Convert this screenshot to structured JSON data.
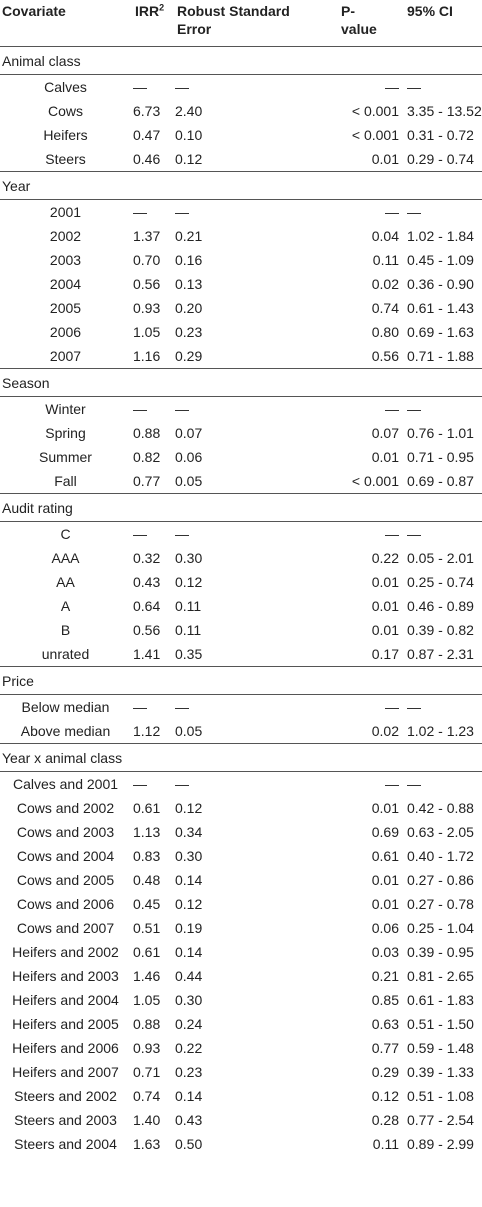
{
  "table": {
    "header": [
      "Covariate",
      "IRR",
      "Robust Standard Error",
      "P-value",
      "95% CI"
    ],
    "header_superscript": "2",
    "sections": [
      {
        "title": "Animal class",
        "rows": [
          [
            "Calves",
            "—",
            "—",
            "—",
            "—"
          ],
          [
            "Cows",
            "6.73",
            "2.40",
            "< 0.001",
            "3.35 - 13.52"
          ],
          [
            "Heifers",
            "0.47",
            "0.10",
            "< 0.001",
            "0.31 - 0.72"
          ],
          [
            "Steers",
            "0.46",
            "0.12",
            "0.01",
            "0.29 - 0.74"
          ]
        ]
      },
      {
        "title": "Year",
        "rows": [
          [
            "2001",
            "—",
            "—",
            "—",
            "—"
          ],
          [
            "2002",
            "1.37",
            "0.21",
            "0.04",
            "1.02 - 1.84"
          ],
          [
            "2003",
            "0.70",
            "0.16",
            "0.11",
            "0.45 - 1.09"
          ],
          [
            "2004",
            "0.56",
            "0.13",
            "0.02",
            "0.36 - 0.90"
          ],
          [
            "2005",
            "0.93",
            "0.20",
            "0.74",
            "0.61 - 1.43"
          ],
          [
            "2006",
            "1.05",
            "0.23",
            "0.80",
            "0.69 - 1.63"
          ],
          [
            "2007",
            "1.16",
            "0.29",
            "0.56",
            "0.71 - 1.88"
          ]
        ]
      },
      {
        "title": "Season",
        "rows": [
          [
            "Winter",
            "—",
            "—",
            "—",
            "—"
          ],
          [
            "Spring",
            "0.88",
            "0.07",
            "0.07",
            "0.76 - 1.01"
          ],
          [
            "Summer",
            "0.82",
            "0.06",
            "0.01",
            "0.71 - 0.95"
          ],
          [
            "Fall",
            "0.77",
            "0.05",
            "< 0.001",
            "0.69 - 0.87"
          ]
        ]
      },
      {
        "title": "Audit rating",
        "rows": [
          [
            "C",
            "—",
            "—",
            "—",
            "—"
          ],
          [
            "AAA",
            "0.32",
            "0.30",
            "0.22",
            "0.05 - 2.01"
          ],
          [
            "AA",
            "0.43",
            "0.12",
            "0.01",
            "0.25 - 0.74"
          ],
          [
            "A",
            "0.64",
            "0.11",
            "0.01",
            "0.46 - 0.89"
          ],
          [
            "B",
            "0.56",
            "0.11",
            "0.01",
            "0.39 - 0.82"
          ],
          [
            "unrated",
            "1.41",
            "0.35",
            "0.17",
            "0.87 - 2.31"
          ]
        ]
      },
      {
        "title": "Price",
        "rows": [
          [
            "Below median",
            "—",
            "—",
            "—",
            "—"
          ],
          [
            "Above median",
            "1.12",
            "0.05",
            "0.02",
            "1.02 - 1.23"
          ]
        ]
      },
      {
        "title": "Year x animal class",
        "rows": [
          [
            "Calves and 2001",
            "—",
            "—",
            "—",
            "—"
          ],
          [
            "Cows and 2002",
            "0.61",
            "0.12",
            "0.01",
            "0.42 - 0.88"
          ],
          [
            "Cows and 2003",
            "1.13",
            "0.34",
            "0.69",
            "0.63 - 2.05"
          ],
          [
            "Cows and 2004",
            "0.83",
            "0.30",
            "0.61",
            "0.40 - 1.72"
          ],
          [
            "Cows and 2005",
            "0.48",
            "0.14",
            "0.01",
            "0.27 - 0.86"
          ],
          [
            "Cows and 2006",
            "0.45",
            "0.12",
            "0.01",
            "0.27 - 0.78"
          ],
          [
            "Cows and 2007",
            "0.51",
            "0.19",
            "0.06",
            "0.25 - 1.04"
          ],
          [
            "Heifers and 2002",
            "0.61",
            "0.14",
            "0.03",
            "0.39 - 0.95"
          ],
          [
            "Heifers and 2003",
            "1.46",
            "0.44",
            "0.21",
            "0.81 - 2.65"
          ],
          [
            "Heifers and 2004",
            "1.05",
            "0.30",
            "0.85",
            "0.61 - 1.83"
          ],
          [
            "Heifers and 2005",
            "0.88",
            "0.24",
            "0.63",
            "0.51 - 1.50"
          ],
          [
            "Heifers and 2006",
            "0.93",
            "0.22",
            "0.77",
            "0.59 - 1.48"
          ],
          [
            "Heifers and 2007",
            "0.71",
            "0.23",
            "0.29",
            "0.39 - 1.33"
          ],
          [
            "Steers and 2002",
            "0.74",
            "0.14",
            "0.12",
            "0.51 - 1.08"
          ],
          [
            "Steers and 2003",
            "1.40",
            "0.43",
            "0.28",
            "0.77 - 2.54"
          ],
          [
            "Steers and 2004",
            "1.63",
            "0.50",
            "0.11",
            "0.89 - 2.99"
          ]
        ]
      }
    ]
  }
}
